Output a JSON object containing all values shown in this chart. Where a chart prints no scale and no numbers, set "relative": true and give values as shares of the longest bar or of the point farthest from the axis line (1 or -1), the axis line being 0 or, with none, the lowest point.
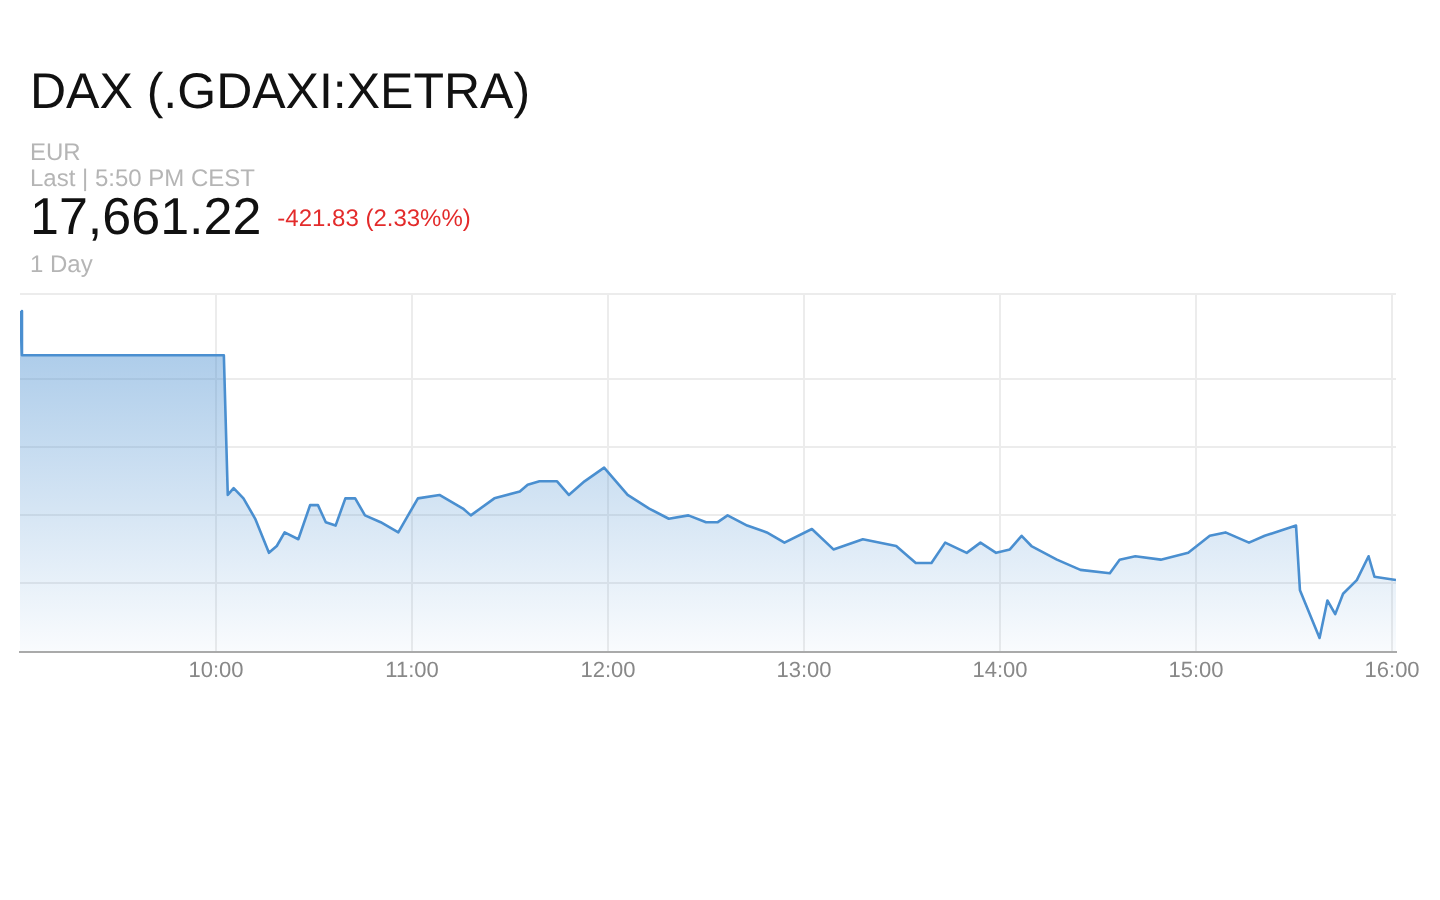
{
  "chart_data": {
    "type": "area",
    "title": "DAX (.GDAXI:XETRA)",
    "annotations": [
      "EUR",
      "Last | 5:50 PM CEST",
      "17,661.22",
      "-421.83 (2.33%%)",
      "1 Day"
    ],
    "relative": true,
    "grid": true,
    "xlim": [
      9,
      16.02
    ],
    "xticks": [
      {
        "value": 10,
        "label": "10:00"
      },
      {
        "value": 11,
        "label": "11:00"
      },
      {
        "value": 12,
        "label": "12:00"
      },
      {
        "value": 13,
        "label": "13:00"
      },
      {
        "value": 14,
        "label": "14:00"
      },
      {
        "value": 15,
        "label": "15:00"
      },
      {
        "value": 16,
        "label": "16:00"
      }
    ],
    "series": [
      {
        "color": "#4a8fd0",
        "x": [
          9.0,
          9.01,
          10.04,
          10.06,
          10.09,
          10.14,
          10.2,
          10.27,
          10.31,
          10.35,
          10.42,
          10.48,
          10.52,
          10.56,
          10.61,
          10.66,
          10.71,
          10.76,
          10.84,
          10.93,
          10.99,
          11.03,
          11.14,
          11.26,
          11.3,
          11.42,
          11.55,
          11.59,
          11.65,
          11.74,
          11.8,
          11.88,
          11.98,
          12.1,
          12.21,
          12.31,
          12.41,
          12.5,
          12.56,
          12.61,
          12.71,
          12.81,
          12.9,
          13.04,
          13.15,
          13.3,
          13.47,
          13.57,
          13.65,
          13.72,
          13.83,
          13.9,
          13.98,
          14.05,
          14.11,
          14.16,
          14.29,
          14.41,
          14.56,
          14.61,
          14.69,
          14.82,
          14.96,
          15.07,
          15.15,
          15.27,
          15.35,
          15.51,
          15.53,
          15.63,
          15.67,
          15.71,
          15.75,
          15.82,
          15.88,
          15.91,
          16.02
        ],
        "values": [
          1.0,
          0.87,
          0.87,
          0.46,
          0.48,
          0.45,
          0.39,
          0.29,
          0.31,
          0.35,
          0.33,
          0.43,
          0.43,
          0.38,
          0.37,
          0.45,
          0.45,
          0.4,
          0.38,
          0.35,
          0.41,
          0.45,
          0.46,
          0.42,
          0.4,
          0.45,
          0.47,
          0.49,
          0.5,
          0.5,
          0.46,
          0.5,
          0.54,
          0.46,
          0.42,
          0.39,
          0.4,
          0.38,
          0.38,
          0.4,
          0.37,
          0.35,
          0.32,
          0.36,
          0.3,
          0.33,
          0.31,
          0.26,
          0.26,
          0.32,
          0.29,
          0.32,
          0.29,
          0.3,
          0.34,
          0.31,
          0.27,
          0.24,
          0.23,
          0.27,
          0.28,
          0.27,
          0.29,
          0.34,
          0.35,
          0.32,
          0.34,
          0.37,
          0.18,
          0.04,
          0.15,
          0.11,
          0.17,
          0.21,
          0.28,
          0.22,
          0.21
        ]
      }
    ]
  }
}
